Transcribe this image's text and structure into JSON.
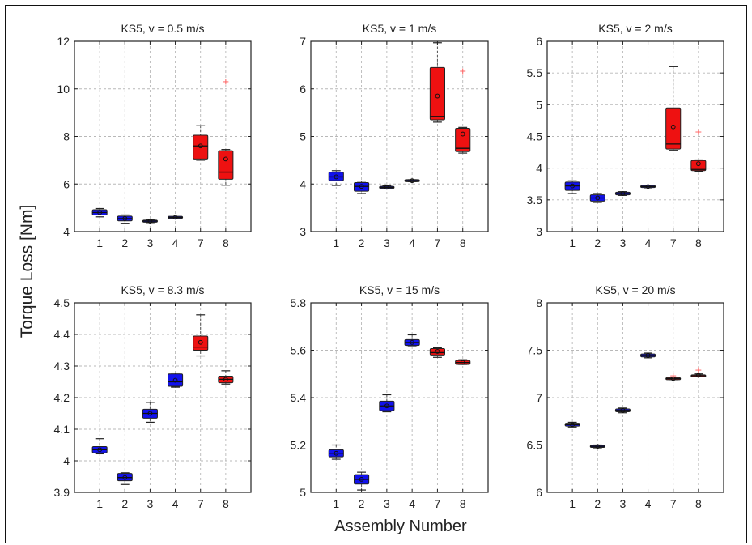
{
  "figure": {
    "ylabel": "Torque Loss [Nm]",
    "xlabel": "Assembly Number"
  },
  "colors": {
    "blue_box": "#1111ee",
    "red_box": "#ee1111",
    "outlier": "#ff6666",
    "grid": "#b8b8b8",
    "axis": "#222222"
  },
  "chart_data": [
    {
      "type": "box",
      "title": "KS5, v = 0.5 m/s",
      "categories": [
        "1",
        "2",
        "3",
        "4",
        "7",
        "8"
      ],
      "ylim": [
        4,
        12
      ],
      "yticks": [
        4,
        6,
        8,
        10,
        12
      ],
      "ytick_labels": [
        "4",
        "6",
        "8",
        "10",
        "12"
      ],
      "grid": true,
      "boxes": [
        {
          "cat": "1",
          "color": "blue",
          "min": 4.62,
          "q1": 4.7,
          "median": 4.8,
          "q3": 4.92,
          "max": 4.97,
          "mean": 4.8
        },
        {
          "cat": "2",
          "color": "blue",
          "min": 4.35,
          "q1": 4.45,
          "median": 4.55,
          "q3": 4.65,
          "max": 4.7,
          "mean": 4.55
        },
        {
          "cat": "3",
          "color": "blue",
          "min": 4.38,
          "q1": 4.41,
          "median": 4.44,
          "q3": 4.47,
          "max": 4.49,
          "mean": 4.44
        },
        {
          "cat": "4",
          "color": "blue",
          "min": 4.58,
          "q1": 4.59,
          "median": 4.6,
          "q3": 4.61,
          "max": 4.62,
          "mean": 4.6
        },
        {
          "cat": "7",
          "color": "red",
          "min": 7.0,
          "q1": 7.05,
          "median": 7.6,
          "q3": 8.05,
          "max": 8.45,
          "mean": 7.6
        },
        {
          "cat": "8",
          "color": "red",
          "min": 5.95,
          "q1": 6.2,
          "median": 6.5,
          "q3": 7.4,
          "max": 7.45,
          "mean": 7.05,
          "outliers": [
            10.3
          ]
        }
      ]
    },
    {
      "type": "box",
      "title": "KS5, v = 1 m/s",
      "categories": [
        "1",
        "2",
        "3",
        "4",
        "7",
        "8"
      ],
      "ylim": [
        3,
        7
      ],
      "yticks": [
        3,
        4,
        5,
        6,
        7
      ],
      "ytick_labels": [
        "3",
        "4",
        "5",
        "6",
        "7"
      ],
      "grid": true,
      "boxes": [
        {
          "cat": "1",
          "color": "blue",
          "min": 3.97,
          "q1": 4.07,
          "median": 4.15,
          "q3": 4.25,
          "max": 4.28,
          "mean": 4.15
        },
        {
          "cat": "2",
          "color": "blue",
          "min": 3.8,
          "q1": 3.85,
          "median": 3.95,
          "q3": 4.03,
          "max": 4.06,
          "mean": 3.95
        },
        {
          "cat": "3",
          "color": "blue",
          "min": 3.9,
          "q1": 3.91,
          "median": 3.93,
          "q3": 3.95,
          "max": 3.96,
          "mean": 3.93
        },
        {
          "cat": "4",
          "color": "blue",
          "min": 4.05,
          "q1": 4.06,
          "median": 4.07,
          "q3": 4.08,
          "max": 4.09,
          "mean": 4.07
        },
        {
          "cat": "7",
          "color": "red",
          "min": 5.3,
          "q1": 5.35,
          "median": 5.42,
          "q3": 6.45,
          "max": 6.97,
          "mean": 5.85
        },
        {
          "cat": "8",
          "color": "red",
          "min": 4.65,
          "q1": 4.68,
          "median": 4.75,
          "q3": 5.17,
          "max": 5.19,
          "mean": 5.05,
          "outliers": [
            6.37
          ]
        }
      ]
    },
    {
      "type": "box",
      "title": "KS5, v = 2 m/s",
      "categories": [
        "1",
        "2",
        "3",
        "4",
        "7",
        "8"
      ],
      "ylim": [
        3,
        6
      ],
      "yticks": [
        3,
        3.5,
        4,
        4.5,
        5,
        5.5,
        6
      ],
      "ytick_labels": [
        "3",
        "3.5",
        "4",
        "4.5",
        "5",
        "5.5",
        "6"
      ],
      "grid": true,
      "boxes": [
        {
          "cat": "1",
          "color": "blue",
          "min": 3.6,
          "q1": 3.65,
          "median": 3.72,
          "q3": 3.78,
          "max": 3.8,
          "mean": 3.72
        },
        {
          "cat": "2",
          "color": "blue",
          "min": 3.46,
          "q1": 3.48,
          "median": 3.53,
          "q3": 3.58,
          "max": 3.6,
          "mean": 3.53
        },
        {
          "cat": "3",
          "color": "blue",
          "min": 3.57,
          "q1": 3.58,
          "median": 3.6,
          "q3": 3.62,
          "max": 3.63,
          "mean": 3.6
        },
        {
          "cat": "4",
          "color": "blue",
          "min": 3.69,
          "q1": 3.7,
          "median": 3.71,
          "q3": 3.72,
          "max": 3.73,
          "mean": 3.71
        },
        {
          "cat": "7",
          "color": "red",
          "min": 4.28,
          "q1": 4.3,
          "median": 4.38,
          "q3": 4.95,
          "max": 5.6,
          "mean": 4.65
        },
        {
          "cat": "8",
          "color": "red",
          "min": 3.95,
          "q1": 3.96,
          "median": 3.98,
          "q3": 4.12,
          "max": 4.13,
          "mean": 4.07,
          "outliers": [
            4.57
          ]
        }
      ]
    },
    {
      "type": "box",
      "title": "KS5, v = 8.3 m/s",
      "categories": [
        "1",
        "2",
        "3",
        "4",
        "7",
        "8"
      ],
      "ylim": [
        3.9,
        4.5
      ],
      "yticks": [
        3.9,
        4,
        4.1,
        4.2,
        4.3,
        4.4,
        4.5
      ],
      "ytick_labels": [
        "3.9",
        "4",
        "4.1",
        "4.2",
        "4.3",
        "4.4",
        "4.5"
      ],
      "grid": true,
      "boxes": [
        {
          "cat": "1",
          "color": "blue",
          "min": 4.022,
          "q1": 4.025,
          "median": 4.035,
          "q3": 4.045,
          "max": 4.07,
          "mean": 4.035
        },
        {
          "cat": "2",
          "color": "blue",
          "min": 3.925,
          "q1": 3.937,
          "median": 3.947,
          "q3": 3.96,
          "max": 3.962,
          "mean": 3.947
        },
        {
          "cat": "3",
          "color": "blue",
          "min": 4.122,
          "q1": 4.135,
          "median": 4.15,
          "q3": 4.163,
          "max": 4.185,
          "mean": 4.15
        },
        {
          "cat": "4",
          "color": "blue",
          "min": 4.233,
          "q1": 4.236,
          "median": 4.25,
          "q3": 4.275,
          "max": 4.278,
          "mean": 4.255
        },
        {
          "cat": "7",
          "color": "red",
          "min": 4.332,
          "q1": 4.35,
          "median": 4.36,
          "q3": 4.395,
          "max": 4.462,
          "mean": 4.375
        },
        {
          "cat": "8",
          "color": "red",
          "min": 4.243,
          "q1": 4.247,
          "median": 4.258,
          "q3": 4.268,
          "max": 4.285,
          "mean": 4.258
        }
      ]
    },
    {
      "type": "box",
      "title": "KS5, v = 15 m/s",
      "categories": [
        "1",
        "2",
        "3",
        "4",
        "7",
        "8"
      ],
      "ylim": [
        5,
        5.8
      ],
      "yticks": [
        5,
        5.2,
        5.4,
        5.6,
        5.8
      ],
      "ytick_labels": [
        "5",
        "5.2",
        "5.4",
        "5.6",
        "5.8"
      ],
      "grid": true,
      "boxes": [
        {
          "cat": "1",
          "color": "blue",
          "min": 5.14,
          "q1": 5.15,
          "median": 5.165,
          "q3": 5.18,
          "max": 5.2,
          "mean": 5.165
        },
        {
          "cat": "2",
          "color": "blue",
          "min": 5.01,
          "q1": 5.035,
          "median": 5.055,
          "q3": 5.075,
          "max": 5.085,
          "mean": 5.055
        },
        {
          "cat": "3",
          "color": "blue",
          "min": 5.34,
          "q1": 5.345,
          "median": 5.365,
          "q3": 5.385,
          "max": 5.412,
          "mean": 5.365
        },
        {
          "cat": "4",
          "color": "blue",
          "min": 5.615,
          "q1": 5.62,
          "median": 5.633,
          "q3": 5.645,
          "max": 5.665,
          "mean": 5.633
        },
        {
          "cat": "7",
          "color": "red",
          "min": 5.57,
          "q1": 5.58,
          "median": 5.59,
          "q3": 5.607,
          "max": 5.61,
          "mean": 5.595
        },
        {
          "cat": "8",
          "color": "red",
          "min": 5.54,
          "q1": 5.54,
          "median": 5.548,
          "q3": 5.557,
          "max": 5.56,
          "mean": 5.548
        }
      ]
    },
    {
      "type": "box",
      "title": "KS5, v = 20 m/s",
      "categories": [
        "1",
        "2",
        "3",
        "4",
        "7",
        "8"
      ],
      "ylim": [
        6,
        8
      ],
      "yticks": [
        6,
        6.5,
        7,
        7.5,
        8
      ],
      "ytick_labels": [
        "6",
        "6.5",
        "7",
        "7.5",
        "8"
      ],
      "grid": true,
      "boxes": [
        {
          "cat": "1",
          "color": "blue",
          "min": 6.69,
          "q1": 6.7,
          "median": 6.715,
          "q3": 6.73,
          "max": 6.74,
          "mean": 6.715
        },
        {
          "cat": "2",
          "color": "blue",
          "min": 6.47,
          "q1": 6.475,
          "median": 6.485,
          "q3": 6.495,
          "max": 6.5,
          "mean": 6.485
        },
        {
          "cat": "3",
          "color": "blue",
          "min": 6.84,
          "q1": 6.85,
          "median": 6.865,
          "q3": 6.88,
          "max": 6.89,
          "mean": 6.865
        },
        {
          "cat": "4",
          "color": "blue",
          "min": 7.42,
          "q1": 7.43,
          "median": 7.445,
          "q3": 7.46,
          "max": 7.47,
          "mean": 7.445
        },
        {
          "cat": "7",
          "color": "red",
          "min": 7.19,
          "q1": 7.19,
          "median": 7.2,
          "q3": 7.21,
          "max": 7.21,
          "mean": 7.2,
          "outliers": [
            7.23
          ]
        },
        {
          "cat": "8",
          "color": "red",
          "min": 7.22,
          "q1": 7.22,
          "median": 7.23,
          "q3": 7.24,
          "max": 7.25,
          "mean": 7.235,
          "outliers": [
            7.29
          ]
        }
      ]
    }
  ]
}
